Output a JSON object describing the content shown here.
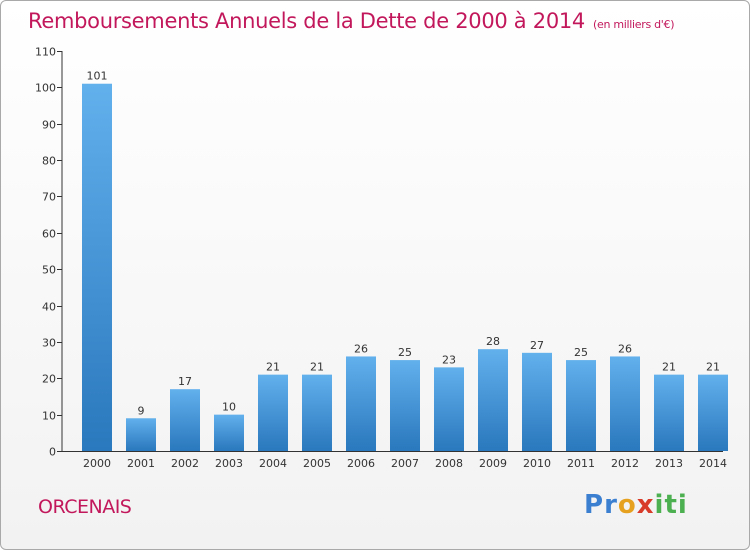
{
  "header": {
    "title": "Remboursements Annuels de la Dette de 2000 à 2014",
    "unit": "(en milliers d'€)"
  },
  "footer": {
    "commune": "ORCENAIS",
    "logo_letters": [
      "P",
      "r",
      "o",
      "x",
      "i",
      "t",
      "i"
    ]
  },
  "colors": {
    "title": "#c2185b",
    "bar_light": "#62b0ec",
    "bar_dark": "#2a78bd",
    "axis": "#333333"
  },
  "chart_data": {
    "type": "bar",
    "title": "Remboursements Annuels de la Dette de 2000 à 2014",
    "ylabel": "",
    "xlabel": "",
    "categories": [
      "2000",
      "2001",
      "2002",
      "2003",
      "2004",
      "2005",
      "2006",
      "2007",
      "2008",
      "2009",
      "2010",
      "2011",
      "2012",
      "2013",
      "2014"
    ],
    "values": [
      101,
      9,
      17,
      10,
      21,
      21,
      26,
      25,
      23,
      28,
      27,
      25,
      26,
      21,
      21
    ],
    "ylim": [
      0,
      110
    ],
    "yticks": [
      0,
      10,
      20,
      30,
      40,
      50,
      60,
      70,
      80,
      90,
      100,
      110
    ],
    "grid": false,
    "data_labels": true
  }
}
